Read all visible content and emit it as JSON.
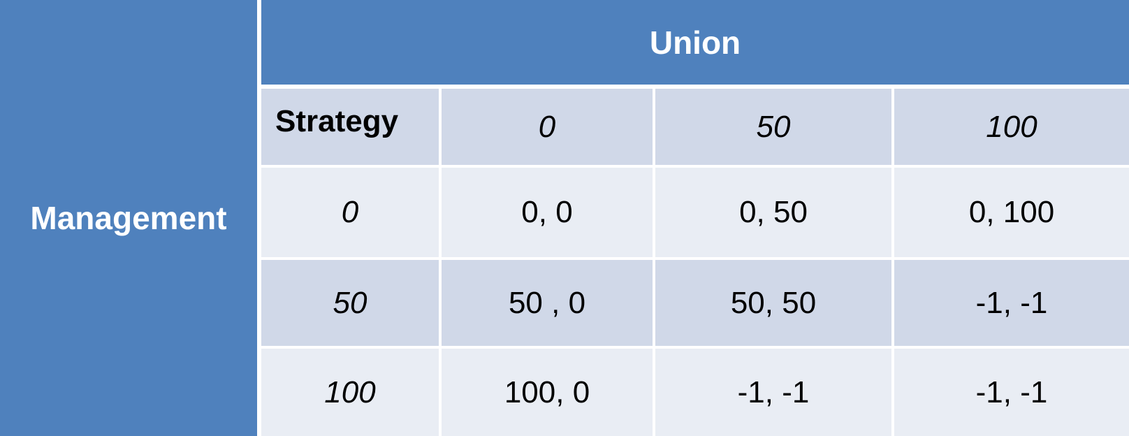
{
  "table": {
    "row_player": "Management",
    "column_player": "Union",
    "corner_label": "Strategy",
    "column_strategies": [
      "0",
      "50",
      "100"
    ],
    "rows": [
      {
        "strategy": "0",
        "payoffs": [
          "0, 0",
          "0, 50",
          "0, 100"
        ]
      },
      {
        "strategy": "50",
        "payoffs": [
          "50 , 0",
          "50, 50",
          "-1, -1"
        ]
      },
      {
        "strategy": "100",
        "payoffs": [
          "100, 0",
          "-1, -1",
          "-1, -1"
        ]
      }
    ]
  },
  "colors": {
    "header_blue": "#4f81bd",
    "band_dark": "#d0d8e8",
    "band_light": "#e9edf4"
  }
}
